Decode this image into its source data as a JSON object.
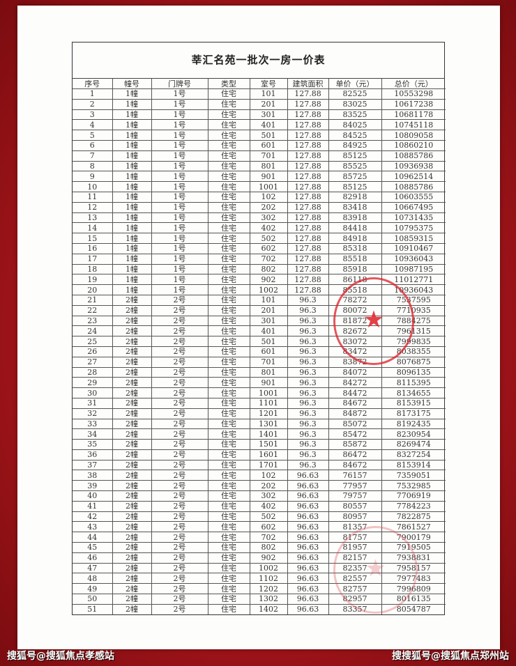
{
  "document": {
    "title": "莘汇名苑一批次一房一价表",
    "columns": [
      "序号",
      "幢号",
      "门牌号",
      "类型",
      "室号",
      "建筑面积",
      "单价（元）",
      "总价（元）"
    ],
    "rows": [
      [
        "1",
        "1幢",
        "1号",
        "住宅",
        "101",
        "127.88",
        "82525",
        "10553298"
      ],
      [
        "2",
        "1幢",
        "1号",
        "住宅",
        "201",
        "127.88",
        "83025",
        "10617238"
      ],
      [
        "3",
        "1幢",
        "1号",
        "住宅",
        "301",
        "127.88",
        "83525",
        "10681178"
      ],
      [
        "4",
        "1幢",
        "1号",
        "住宅",
        "401",
        "127.88",
        "84025",
        "10745118"
      ],
      [
        "5",
        "1幢",
        "1号",
        "住宅",
        "501",
        "127.88",
        "84525",
        "10809058"
      ],
      [
        "6",
        "1幢",
        "1号",
        "住宅",
        "601",
        "127.88",
        "84925",
        "10860210"
      ],
      [
        "7",
        "1幢",
        "1号",
        "住宅",
        "701",
        "127.88",
        "85125",
        "10885786"
      ],
      [
        "8",
        "1幢",
        "1号",
        "住宅",
        "801",
        "127.88",
        "85525",
        "10936938"
      ],
      [
        "9",
        "1幢",
        "1号",
        "住宅",
        "901",
        "127.88",
        "85725",
        "10962514"
      ],
      [
        "10",
        "1幢",
        "1号",
        "住宅",
        "1001",
        "127.88",
        "85125",
        "10885786"
      ],
      [
        "11",
        "1幢",
        "1号",
        "住宅",
        "102",
        "127.88",
        "82918",
        "10603555"
      ],
      [
        "12",
        "1幢",
        "1号",
        "住宅",
        "202",
        "127.88",
        "83418",
        "10667495"
      ],
      [
        "13",
        "1幢",
        "1号",
        "住宅",
        "302",
        "127.88",
        "83918",
        "10731435"
      ],
      [
        "14",
        "1幢",
        "1号",
        "住宅",
        "402",
        "127.88",
        "84418",
        "10795375"
      ],
      [
        "15",
        "1幢",
        "1号",
        "住宅",
        "502",
        "127.88",
        "84918",
        "10859315"
      ],
      [
        "16",
        "1幢",
        "1号",
        "住宅",
        "602",
        "127.88",
        "85318",
        "10910467"
      ],
      [
        "17",
        "1幢",
        "1号",
        "住宅",
        "702",
        "127.88",
        "85518",
        "10936043"
      ],
      [
        "18",
        "1幢",
        "1号",
        "住宅",
        "802",
        "127.88",
        "85918",
        "10987195"
      ],
      [
        "19",
        "1幢",
        "1号",
        "住宅",
        "902",
        "127.88",
        "86118",
        "11012771"
      ],
      [
        "20",
        "1幢",
        "1号",
        "住宅",
        "1002",
        "127.88",
        "85518",
        "10936043"
      ],
      [
        "21",
        "2幢",
        "2号",
        "住宅",
        "101",
        "96.3",
        "78272",
        "7537595"
      ],
      [
        "22",
        "2幢",
        "2号",
        "住宅",
        "201",
        "96.3",
        "80072",
        "7710935"
      ],
      [
        "23",
        "2幢",
        "2号",
        "住宅",
        "301",
        "96.3",
        "81872",
        "7884275"
      ],
      [
        "24",
        "2幢",
        "2号",
        "住宅",
        "401",
        "96.3",
        "82672",
        "7961315"
      ],
      [
        "25",
        "2幢",
        "2号",
        "住宅",
        "501",
        "96.3",
        "83072",
        "7999835"
      ],
      [
        "26",
        "2幢",
        "2号",
        "住宅",
        "601",
        "96.3",
        "83472",
        "8038355"
      ],
      [
        "27",
        "2幢",
        "2号",
        "住宅",
        "701",
        "96.3",
        "83872",
        "8076875"
      ],
      [
        "28",
        "2幢",
        "2号",
        "住宅",
        "801",
        "96.3",
        "84072",
        "8096135"
      ],
      [
        "29",
        "2幢",
        "2号",
        "住宅",
        "901",
        "96.3",
        "84272",
        "8115395"
      ],
      [
        "30",
        "2幢",
        "2号",
        "住宅",
        "1001",
        "96.3",
        "84472",
        "8134655"
      ],
      [
        "31",
        "2幢",
        "2号",
        "住宅",
        "1101",
        "96.3",
        "84672",
        "8153915"
      ],
      [
        "32",
        "2幢",
        "2号",
        "住宅",
        "1201",
        "96.3",
        "84872",
        "8173175"
      ],
      [
        "33",
        "2幢",
        "2号",
        "住宅",
        "1301",
        "96.3",
        "85072",
        "8192435"
      ],
      [
        "34",
        "2幢",
        "2号",
        "住宅",
        "1401",
        "96.3",
        "85472",
        "8230954"
      ],
      [
        "35",
        "2幢",
        "2号",
        "住宅",
        "1501",
        "96.3",
        "85872",
        "8269474"
      ],
      [
        "36",
        "2幢",
        "2号",
        "住宅",
        "1601",
        "96.3",
        "86472",
        "8327254"
      ],
      [
        "37",
        "2幢",
        "2号",
        "住宅",
        "1701",
        "96.3",
        "84672",
        "8153914"
      ],
      [
        "38",
        "2幢",
        "2号",
        "住宅",
        "102",
        "96.63",
        "76157",
        "7359051"
      ],
      [
        "39",
        "2幢",
        "2号",
        "住宅",
        "202",
        "96.63",
        "77957",
        "7532985"
      ],
      [
        "40",
        "2幢",
        "2号",
        "住宅",
        "302",
        "96.63",
        "79757",
        "7706919"
      ],
      [
        "41",
        "2幢",
        "2号",
        "住宅",
        "402",
        "96.63",
        "80557",
        "7784223"
      ],
      [
        "42",
        "2幢",
        "2号",
        "住宅",
        "502",
        "96.63",
        "80957",
        "7822875"
      ],
      [
        "43",
        "2幢",
        "2号",
        "住宅",
        "602",
        "96.63",
        "81357",
        "7861527"
      ],
      [
        "44",
        "2幢",
        "2号",
        "住宅",
        "702",
        "96.63",
        "81757",
        "7900179"
      ],
      [
        "45",
        "2幢",
        "2号",
        "住宅",
        "802",
        "96.63",
        "81957",
        "7919505"
      ],
      [
        "46",
        "2幢",
        "2号",
        "住宅",
        "902",
        "96.63",
        "82157",
        "7938831"
      ],
      [
        "47",
        "2幢",
        "2号",
        "住宅",
        "1002",
        "96.63",
        "82357",
        "7958157"
      ],
      [
        "48",
        "2幢",
        "2号",
        "住宅",
        "1102",
        "96.63",
        "82557",
        "7977483"
      ],
      [
        "49",
        "2幢",
        "2号",
        "住宅",
        "1202",
        "96.63",
        "82757",
        "7996809"
      ],
      [
        "50",
        "2幢",
        "2号",
        "住宅",
        "1302",
        "96.63",
        "82957",
        "8016135"
      ],
      [
        "51",
        "2幢",
        "2号",
        "住宅",
        "1402",
        "96.63",
        "83357",
        "8054787"
      ]
    ]
  },
  "watermarks": {
    "left": "搜狐号@搜狐焦点孝感站",
    "right": "搜搜狐号@搜狐焦点郑州站"
  },
  "colors": {
    "background": "#a3151a",
    "stamp": "#dc1e28"
  }
}
